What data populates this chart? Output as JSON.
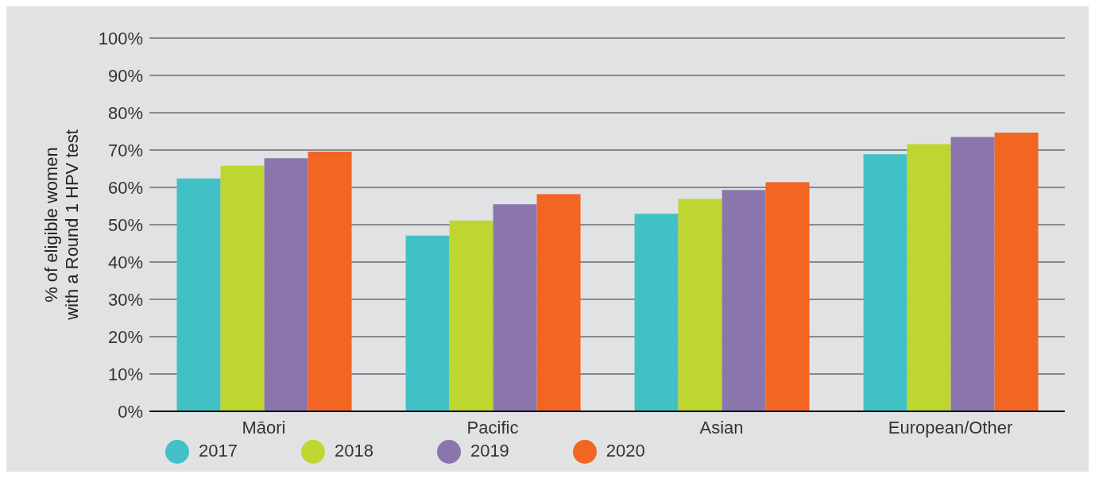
{
  "chart_data": {
    "type": "bar",
    "ylabel": "% of eligible women with a Round 1 HPV test",
    "categories": [
      "Māori",
      "Pacific",
      "Asian",
      "European/Other"
    ],
    "series": [
      {
        "name": "2017",
        "color": "#41c0c6",
        "values": [
          62.4,
          47.1,
          52.9,
          68.9
        ]
      },
      {
        "name": "2018",
        "color": "#bed62f",
        "values": [
          65.8,
          51.1,
          56.9,
          71.6
        ]
      },
      {
        "name": "2019",
        "color": "#8a76ad",
        "values": [
          67.8,
          55.5,
          59.3,
          73.5
        ]
      },
      {
        "name": "2020",
        "color": "#f26522",
        "values": [
          69.6,
          58.2,
          61.4,
          74.7
        ]
      }
    ],
    "ylim": [
      0,
      100
    ],
    "yticks": [
      {
        "value": 0,
        "label": "0%"
      },
      {
        "value": 10,
        "label": "10%"
      },
      {
        "value": 20,
        "label": "20%"
      },
      {
        "value": 30,
        "label": "30%"
      },
      {
        "value": 40,
        "label": "40%"
      },
      {
        "value": 50,
        "label": "50%"
      },
      {
        "value": 60,
        "label": "60%"
      },
      {
        "value": 70,
        "label": "70%"
      },
      {
        "value": 80,
        "label": "80%"
      },
      {
        "value": 90,
        "label": "90%"
      },
      {
        "value": 100,
        "label": "100%"
      }
    ],
    "grid": "y",
    "legend": "bottom left"
  }
}
